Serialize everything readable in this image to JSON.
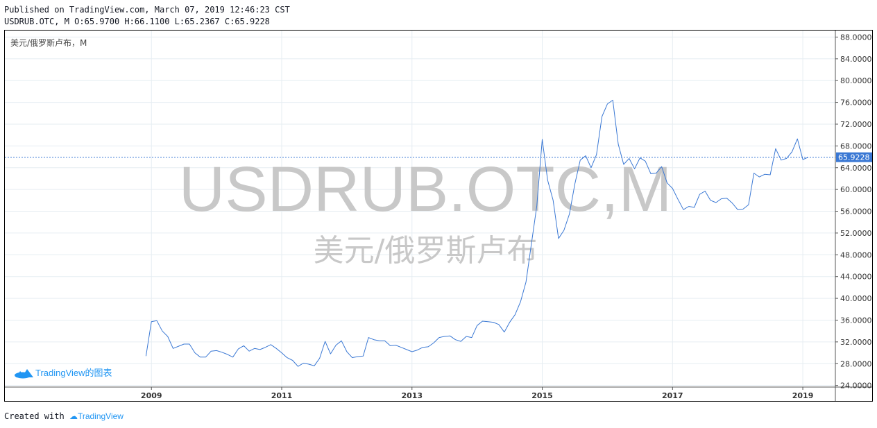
{
  "header": {
    "published": "Published on TradingView.com, March 07, 2019 12:46:23 CST",
    "ohlc": "USDRUB.OTC, M O:65.9700 H:66.1100 L:65.2367 C:65.9228"
  },
  "chart_title": "美元/俄罗斯卢布，M",
  "watermark": {
    "symbol": "USDRUB.OTC,M",
    "name": "美元/俄罗斯卢布"
  },
  "logo_text": "TradingView的图表",
  "footer": {
    "created_with": "Created with",
    "brand": "TradingView"
  },
  "colors": {
    "line": "#3a78d4",
    "grid": "#e6edf2",
    "last_price_bg": "#3a78d4",
    "brand": "#2196f3"
  },
  "chart_data": {
    "type": "line",
    "series": [
      {
        "x": [
          2008.917,
          2009.0,
          2009.083,
          2009.167,
          2009.25,
          2009.333,
          2009.417,
          2009.5,
          2009.583,
          2009.667,
          2009.75,
          2009.833,
          2009.917,
          2010.0,
          2010.083,
          2010.167,
          2010.25,
          2010.333,
          2010.417,
          2010.5,
          2010.583,
          2010.667,
          2010.75,
          2010.833,
          2010.917,
          2011.0,
          2011.083,
          2011.167,
          2011.25,
          2011.333,
          2011.417,
          2011.5,
          2011.583,
          2011.667,
          2011.75,
          2011.833,
          2011.917,
          2012.0,
          2012.083,
          2012.167,
          2012.25,
          2012.333,
          2012.417,
          2012.5,
          2012.583,
          2012.667,
          2012.75,
          2012.833,
          2012.917,
          2013.0,
          2013.083,
          2013.167,
          2013.25,
          2013.333,
          2013.417,
          2013.5,
          2013.583,
          2013.667,
          2013.75,
          2013.833,
          2013.917,
          2014.0,
          2014.083,
          2014.167,
          2014.25,
          2014.333,
          2014.417,
          2014.5,
          2014.583,
          2014.667,
          2014.75,
          2014.833,
          2014.917,
          2015.0,
          2015.083,
          2015.167,
          2015.25,
          2015.333,
          2015.417,
          2015.5,
          2015.583,
          2015.667,
          2015.75,
          2015.833,
          2015.917,
          2016.0,
          2016.083,
          2016.167,
          2016.25,
          2016.333,
          2016.417,
          2016.5,
          2016.583,
          2016.667,
          2016.75,
          2016.833,
          2016.917,
          2017.0,
          2017.083,
          2017.167,
          2017.25,
          2017.333,
          2017.417,
          2017.5,
          2017.583,
          2017.667,
          2017.75,
          2017.833,
          2017.917,
          2018.0,
          2018.083,
          2018.167,
          2018.25,
          2018.333,
          2018.417,
          2018.5,
          2018.583,
          2018.667,
          2018.75,
          2018.833,
          2018.917,
          2019.0,
          2019.083
        ],
        "y": [
          29.4,
          35.7,
          35.9,
          34.0,
          33.0,
          30.8,
          31.2,
          31.6,
          31.6,
          30.0,
          29.2,
          29.2,
          30.3,
          30.4,
          30.1,
          29.7,
          29.2,
          30.7,
          31.3,
          30.3,
          30.8,
          30.6,
          31.0,
          31.5,
          30.8,
          30.0,
          29.1,
          28.6,
          27.5,
          28.1,
          27.9,
          27.6,
          29.0,
          32.1,
          29.8,
          31.4,
          32.2,
          30.2,
          29.1,
          29.3,
          29.4,
          32.8,
          32.4,
          32.2,
          32.2,
          31.3,
          31.4,
          31.0,
          30.6,
          30.2,
          30.5,
          31.0,
          31.1,
          31.8,
          32.8,
          33.0,
          33.1,
          32.4,
          32.1,
          33.0,
          32.8,
          35.0,
          35.8,
          35.7,
          35.6,
          35.2,
          33.8,
          35.6,
          37.0,
          39.4,
          43.0,
          50.0,
          57.0,
          69.2,
          61.7,
          58.0,
          51.0,
          52.5,
          55.5,
          61.0,
          65.4,
          66.2,
          64.0,
          66.4,
          73.4,
          75.7,
          76.4,
          68.3,
          64.6,
          65.7,
          63.8,
          65.8,
          65.2,
          62.9,
          63.0,
          64.2,
          61.2,
          60.2,
          58.2,
          56.3,
          56.9,
          56.7,
          59.1,
          59.7,
          58.0,
          57.6,
          58.3,
          58.4,
          57.5,
          56.3,
          56.4,
          57.2,
          63.0,
          62.3,
          62.8,
          62.7,
          67.5,
          65.4,
          65.7,
          66.9,
          69.3,
          65.5,
          65.9228
        ]
      }
    ],
    "x_ticks": [
      2009,
      2011,
      2013,
      2015,
      2017,
      2019
    ],
    "x_tick_labels": [
      "2009",
      "2011",
      "2013",
      "2015",
      "2017",
      "2019"
    ],
    "xlim": [
      2006.75,
      2019.5
    ],
    "y_ticks": [
      24,
      28,
      32,
      36,
      40,
      44,
      48,
      52,
      56,
      60,
      64,
      68,
      72,
      76,
      80,
      84,
      88
    ],
    "y_tick_labels": [
      "24.0000",
      "28.0000",
      "32.0000",
      "36.0000",
      "40.0000",
      "44.0000",
      "48.0000",
      "52.0000",
      "56.0000",
      "60.0000",
      "64.0000",
      "68.0000",
      "72.0000",
      "76.0000",
      "80.0000",
      "84.0000",
      "88.0000"
    ],
    "ylim": [
      23.7,
      89.2
    ],
    "last_price": 65.9228,
    "last_price_label": "65.9228",
    "grid": true
  }
}
